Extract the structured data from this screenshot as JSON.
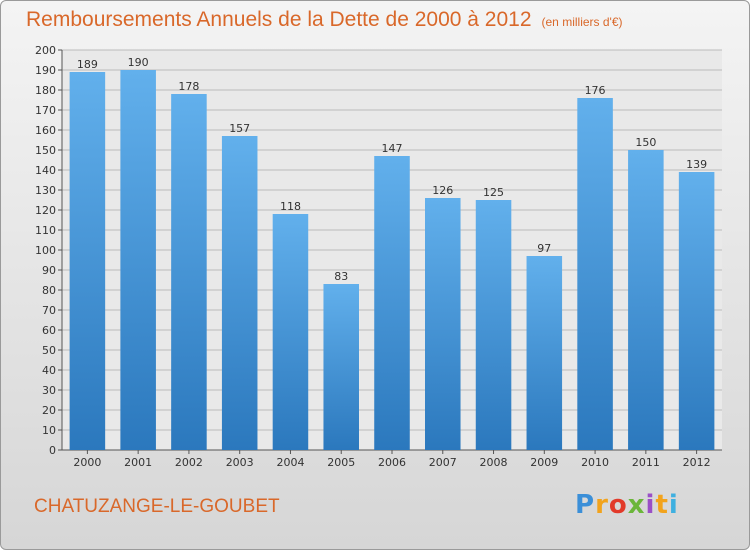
{
  "chart_data": {
    "type": "bar",
    "title": "Remboursements Annuels de la Dette de 2000 à 2012",
    "unit_note": "(en milliers d'€)",
    "categories": [
      "2000",
      "2001",
      "2002",
      "2003",
      "2004",
      "2005",
      "2006",
      "2007",
      "2008",
      "2009",
      "2010",
      "2011",
      "2012"
    ],
    "values": [
      189,
      190,
      178,
      157,
      118,
      83,
      147,
      126,
      125,
      97,
      176,
      150,
      139
    ],
    "ylim": [
      0,
      200
    ],
    "ytick_step": 10,
    "grid": true,
    "xlabel": "",
    "ylabel": "",
    "bar_color_top": "#62b0ec",
    "bar_color_bottom": "#2b78bd"
  },
  "commune": "CHATUZANGE-LE-GOUBET",
  "logo": {
    "letters": [
      "P",
      "r",
      "o",
      "x",
      "i",
      "t",
      "i"
    ]
  }
}
